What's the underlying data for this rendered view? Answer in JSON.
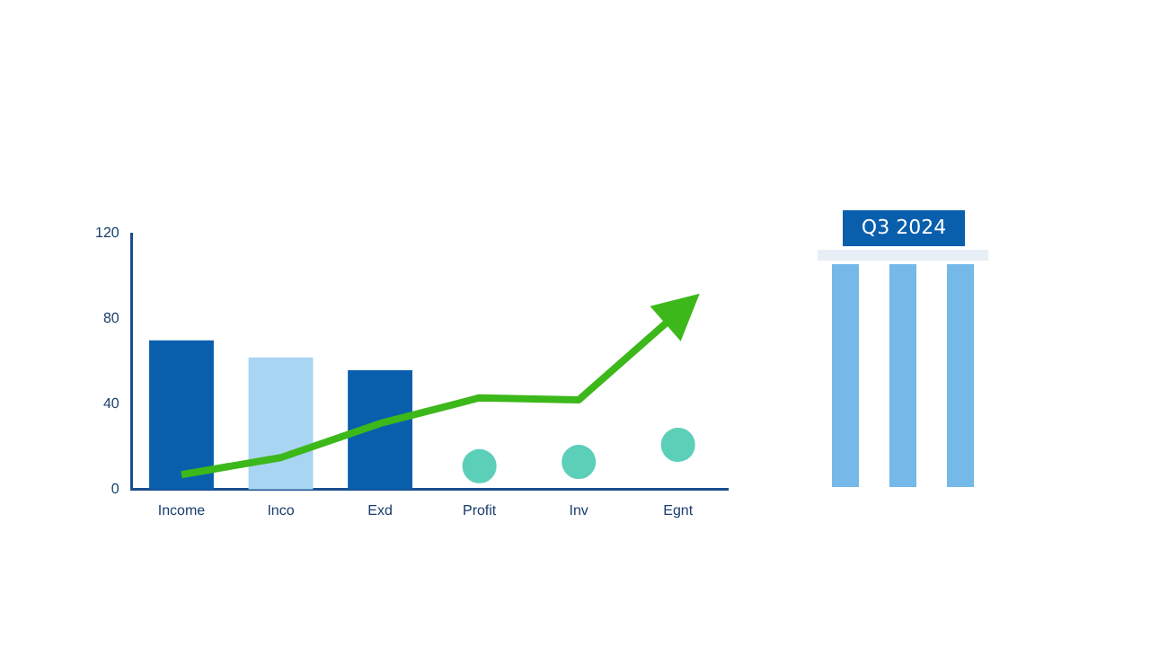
{
  "chart_data": {
    "type": "bar",
    "categories": [
      "Income",
      "Inco",
      "Exd",
      "Profit",
      "Inv",
      "Egnt"
    ],
    "series": [
      {
        "colors": [
          "#0a5fad",
          "#a8d5f2",
          "#0a5fad",
          null,
          null,
          null
        ],
        "values": [
          70,
          62,
          56,
          null,
          null,
          null
        ]
      },
      {
        "type": "scatter",
        "color": "#5ccfb9",
        "marker": "circle",
        "values": [
          null,
          null,
          null,
          11,
          13,
          21
        ]
      },
      {
        "type": "line",
        "color": "#3cb81a",
        "marker": "none",
        "values": [
          7,
          15,
          31,
          43,
          42,
          83
        ]
      }
    ],
    "ylim": [
      0,
      120
    ],
    "yticks": [
      0,
      40,
      80,
      120
    ],
    "grid": false,
    "legend": false,
    "annotations": [
      "Q3 2024"
    ]
  }
}
